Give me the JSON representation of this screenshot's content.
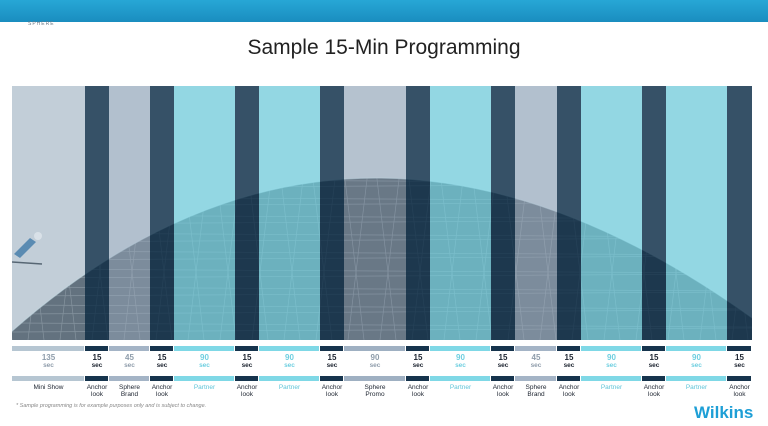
{
  "header": {
    "brand_text": "SPHERE",
    "accent_color": "#1a8dbf"
  },
  "title": "Sample 15-Min Programming",
  "segments": [
    {
      "type": "mini",
      "num": "135",
      "unit": "sec",
      "label": "Mini Show"
    },
    {
      "type": "anchor",
      "num": "15",
      "unit": "sec",
      "label": "Anchor\nlook"
    },
    {
      "type": "sphere",
      "num": "45",
      "unit": "sec",
      "label": "Sphere\nBrand"
    },
    {
      "type": "anchor",
      "num": "15",
      "unit": "sec",
      "label": "Anchor\nlook"
    },
    {
      "type": "partner",
      "num": "90",
      "unit": "sec",
      "label": "Partner"
    },
    {
      "type": "anchor",
      "num": "15",
      "unit": "sec",
      "label": "Anchor\nlook"
    },
    {
      "type": "partner",
      "num": "90",
      "unit": "sec",
      "label": "Partner"
    },
    {
      "type": "anchor",
      "num": "15",
      "unit": "sec",
      "label": "Anchor\nlook"
    },
    {
      "type": "promo",
      "num": "90",
      "unit": "sec",
      "label": "Sphere\nPromo"
    },
    {
      "type": "anchor",
      "num": "15",
      "unit": "sec",
      "label": "Anchor\nlook"
    },
    {
      "type": "partner",
      "num": "90",
      "unit": "sec",
      "label": "Partner"
    },
    {
      "type": "anchor",
      "num": "15",
      "unit": "sec",
      "label": "Anchor\nlook"
    },
    {
      "type": "sphere",
      "num": "45",
      "unit": "sec",
      "label": "Sphere\nBrand"
    },
    {
      "type": "anchor",
      "num": "15",
      "unit": "sec",
      "label": "Anchor\nlook"
    },
    {
      "type": "partner",
      "num": "90",
      "unit": "sec",
      "label": "Partner"
    },
    {
      "type": "anchor",
      "num": "15",
      "unit": "sec",
      "label": "Anchor\nlook"
    },
    {
      "type": "partner",
      "num": "90",
      "unit": "sec",
      "label": "Partner"
    },
    {
      "type": "anchor",
      "num": "15",
      "unit": "sec",
      "label": "Anchor\nlook"
    }
  ],
  "colors": {
    "anchor": "#16344d",
    "partner": "#7fd8e6",
    "sphere": "#a4b4c6",
    "promo": "#9fb0c2",
    "mini": "#b6c6d2",
    "anchor_text": "#1d2430",
    "partner_text": "#6fcfe0",
    "gray_text": "#8f9dab"
  },
  "footnote": "* Sample programming is for example purposes only and is subject to change.",
  "logo": "Wilkins"
}
